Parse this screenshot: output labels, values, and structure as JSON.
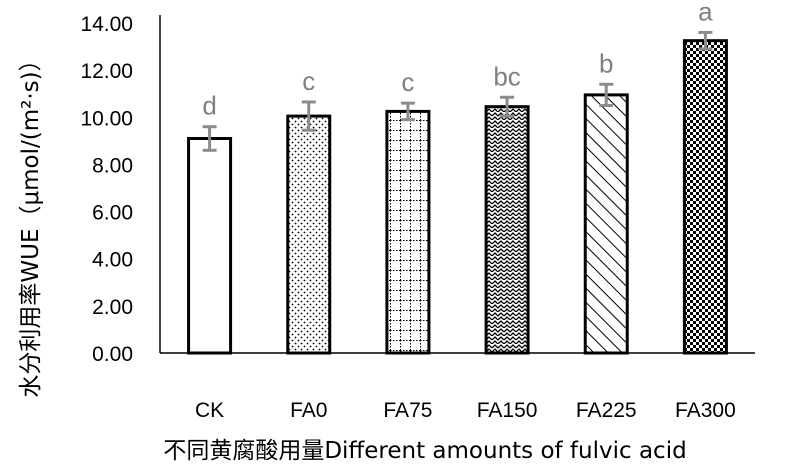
{
  "chart_data": {
    "type": "bar",
    "title": "",
    "xlabel": "不同黄腐酸用量Different amounts of fulvic acid",
    "ylabel": "水分利用率WUE（μmol/(m²·s)）",
    "ylim": [
      0,
      14
    ],
    "yticks": [
      "0.00",
      "2.00",
      "4.00",
      "6.00",
      "8.00",
      "10.00",
      "12.00",
      "14.00"
    ],
    "categories": [
      "CK",
      "FA0",
      "FA75",
      "FA150",
      "FA225",
      "FA300"
    ],
    "values": [
      9.1,
      10.05,
      10.25,
      10.45,
      10.95,
      13.25
    ],
    "errors": [
      0.5,
      0.6,
      0.35,
      0.4,
      0.45,
      0.35
    ],
    "significance": [
      "d",
      "c",
      "c",
      "bc",
      "b",
      "a"
    ],
    "patterns": [
      "none",
      "dots",
      "dotted-grid",
      "waves",
      "diagonal",
      "checker"
    ],
    "grid": false,
    "legend": "none",
    "colors": {
      "bar_edge": "#000000",
      "error_bar": "#8c8c8c",
      "sig_text": "#808080"
    }
  }
}
